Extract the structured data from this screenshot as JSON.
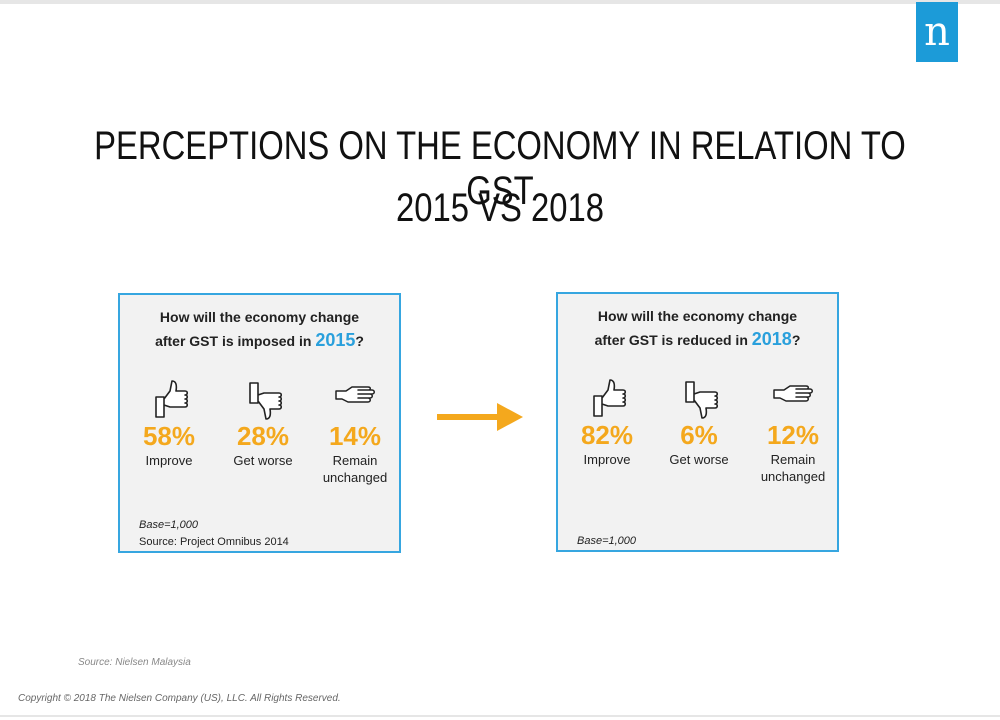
{
  "logo_letter": "n",
  "title_line1": "PERCEPTIONS ON THE ECONOMY IN RELATION TO GST",
  "title_line2": "2015 VS 2018",
  "colors": {
    "accent_blue": "#36a6e0",
    "accent_orange": "#f4a81d",
    "logo_blue": "#1c9bd8"
  },
  "panels": [
    {
      "question_line1": "How will the economy  change",
      "question_prefix": "after GST is imposed in ",
      "year": "2015",
      "question_suffix": "?",
      "items": [
        {
          "icon": "thumbs-up-icon",
          "pct": "58%",
          "label_line1": "Improve",
          "label_line2": ""
        },
        {
          "icon": "thumbs-down-icon",
          "pct": "28%",
          "label_line1": "Get worse",
          "label_line2": ""
        },
        {
          "icon": "flat-hand-icon",
          "pct": "14%",
          "label_line1": "Remain",
          "label_line2": "unchanged"
        }
      ],
      "base": "Base=1,000",
      "source": "Source: Project Omnibus 2014"
    },
    {
      "question_line1": "How will the economy  change",
      "question_prefix": "after GST is reduced in ",
      "year": "2018",
      "question_suffix": "?",
      "items": [
        {
          "icon": "thumbs-up-icon",
          "pct": "82%",
          "label_line1": "Improve",
          "label_line2": ""
        },
        {
          "icon": "thumbs-down-icon",
          "pct": "6%",
          "label_line1": "Get worse",
          "label_line2": ""
        },
        {
          "icon": "flat-hand-icon",
          "pct": "12%",
          "label_line1": "Remain",
          "label_line2": "unchanged"
        }
      ],
      "base": "Base=1,000",
      "source": ""
    }
  ],
  "arrow_icon": "right-arrow-icon",
  "source_note": "Source:  Nielsen Malaysia",
  "copyright": "Copyright © 2018 The Nielsen Company (US), LLC. All Rights Reserved."
}
